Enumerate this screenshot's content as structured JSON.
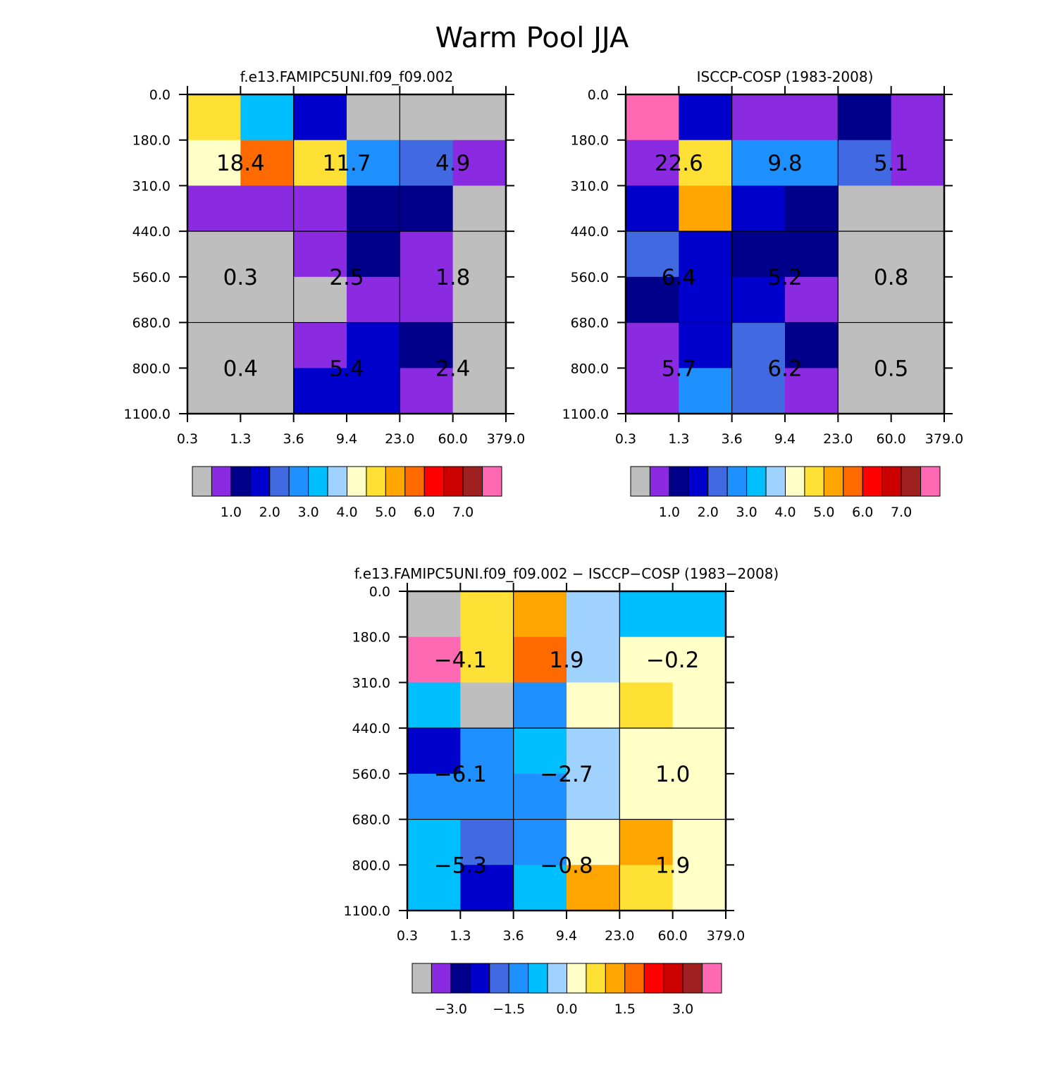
{
  "page_title": "Warm Pool JJA",
  "palette": [
    "#bebebe",
    "#8a2be2",
    "#00008b",
    "#0000cd",
    "#4169e1",
    "#1e90ff",
    "#00bfff",
    "#a0d2ff",
    "#ffffc8",
    "#ffe135",
    "#ffa500",
    "#ff6a00",
    "#ff0000",
    "#cd0000",
    "#9e2020",
    "#ff69b4"
  ],
  "chart_data": [
    {
      "type": "heatmap",
      "title": "f.e13.FAMIPC5UNI.f09_f09.002",
      "xticks": [
        "0.3",
        "1.3",
        "3.6",
        "9.4",
        "23.0",
        "60.0",
        "379.0"
      ],
      "yticks": [
        "0.0",
        "180.0",
        "310.0",
        "440.0",
        "560.0",
        "680.0",
        "800.0",
        "1100.0"
      ],
      "cells": [
        [
          9,
          6,
          3,
          0,
          0,
          0
        ],
        [
          8,
          11,
          9,
          5,
          4,
          1
        ],
        [
          1,
          1,
          1,
          2,
          2,
          0
        ],
        [
          0,
          0,
          1,
          2,
          1,
          0
        ],
        [
          0,
          0,
          0,
          1,
          1,
          0
        ],
        [
          0,
          0,
          1,
          3,
          2,
          0
        ],
        [
          0,
          0,
          3,
          3,
          1,
          0
        ]
      ],
      "labels": [
        {
          "text": "18.4",
          "x": 1.0,
          "y": 1.5
        },
        {
          "text": "11.7",
          "x": 3.0,
          "y": 1.5
        },
        {
          "text": "4.9",
          "x": 5.0,
          "y": 1.5
        },
        {
          "text": "0.3",
          "x": 1.0,
          "y": 4.0
        },
        {
          "text": "2.5",
          "x": 3.0,
          "y": 4.0
        },
        {
          "text": "1.8",
          "x": 5.0,
          "y": 4.0
        },
        {
          "text": "0.4",
          "x": 1.0,
          "y": 6.0
        },
        {
          "text": "5.4",
          "x": 3.0,
          "y": 6.0
        },
        {
          "text": "2.4",
          "x": 5.0,
          "y": 6.0
        }
      ],
      "colorbar_ticks": [
        "1.0",
        "2.0",
        "3.0",
        "4.0",
        "5.0",
        "6.0",
        "7.0"
      ]
    },
    {
      "type": "heatmap",
      "title": "ISCCP-COSP (1983-2008)",
      "xticks": [
        "0.3",
        "1.3",
        "3.6",
        "9.4",
        "23.0",
        "60.0",
        "379.0"
      ],
      "yticks": [
        "0.0",
        "180.0",
        "310.0",
        "440.0",
        "560.0",
        "680.0",
        "800.0",
        "1100.0"
      ],
      "cells": [
        [
          15,
          3,
          1,
          1,
          2,
          1
        ],
        [
          1,
          9,
          5,
          5,
          4,
          1
        ],
        [
          3,
          10,
          3,
          2,
          0,
          0
        ],
        [
          4,
          3,
          2,
          2,
          0,
          0
        ],
        [
          2,
          3,
          3,
          1,
          0,
          0
        ],
        [
          1,
          3,
          4,
          2,
          0,
          0
        ],
        [
          1,
          5,
          4,
          1,
          0,
          0
        ]
      ],
      "labels": [
        {
          "text": "22.6",
          "x": 1.0,
          "y": 1.5
        },
        {
          "text": "9.8",
          "x": 3.0,
          "y": 1.5
        },
        {
          "text": "5.1",
          "x": 5.0,
          "y": 1.5
        },
        {
          "text": "6.4",
          "x": 1.0,
          "y": 4.0
        },
        {
          "text": "5.2",
          "x": 3.0,
          "y": 4.0
        },
        {
          "text": "0.8",
          "x": 5.0,
          "y": 4.0
        },
        {
          "text": "5.7",
          "x": 1.0,
          "y": 6.0
        },
        {
          "text": "6.2",
          "x": 3.0,
          "y": 6.0
        },
        {
          "text": "0.5",
          "x": 5.0,
          "y": 6.0
        }
      ],
      "colorbar_ticks": [
        "1.0",
        "2.0",
        "3.0",
        "4.0",
        "5.0",
        "6.0",
        "7.0"
      ]
    },
    {
      "type": "heatmap",
      "title": "f.e13.FAMIPC5UNI.f09_f09.002 − ISCCP−COSP (1983−2008)",
      "xticks": [
        "0.3",
        "1.3",
        "3.6",
        "9.4",
        "23.0",
        "60.0",
        "379.0"
      ],
      "yticks": [
        "0.0",
        "180.0",
        "310.0",
        "440.0",
        "560.0",
        "680.0",
        "800.0",
        "1100.0"
      ],
      "cells": [
        [
          0,
          9,
          10,
          7,
          6,
          6
        ],
        [
          15,
          9,
          11,
          7,
          8,
          8
        ],
        [
          6,
          0,
          5,
          8,
          9,
          8
        ],
        [
          3,
          5,
          6,
          7,
          8,
          8
        ],
        [
          5,
          5,
          5,
          7,
          8,
          8
        ],
        [
          6,
          4,
          5,
          8,
          10,
          8
        ],
        [
          6,
          3,
          6,
          10,
          9,
          8
        ]
      ],
      "labels": [
        {
          "text": "−4.1",
          "x": 1.0,
          "y": 1.5
        },
        {
          "text": "1.9",
          "x": 3.0,
          "y": 1.5
        },
        {
          "text": "−0.2",
          "x": 5.0,
          "y": 1.5
        },
        {
          "text": "−6.1",
          "x": 1.0,
          "y": 4.0
        },
        {
          "text": "−2.7",
          "x": 3.0,
          "y": 4.0
        },
        {
          "text": "1.0",
          "x": 5.0,
          "y": 4.0
        },
        {
          "text": "−5.3",
          "x": 1.0,
          "y": 6.0
        },
        {
          "text": "−0.8",
          "x": 3.0,
          "y": 6.0
        },
        {
          "text": "1.9",
          "x": 5.0,
          "y": 6.0
        }
      ],
      "colorbar_ticks": [
        "−3.0",
        "−1.5",
        "0.0",
        "1.5",
        "3.0"
      ]
    }
  ]
}
